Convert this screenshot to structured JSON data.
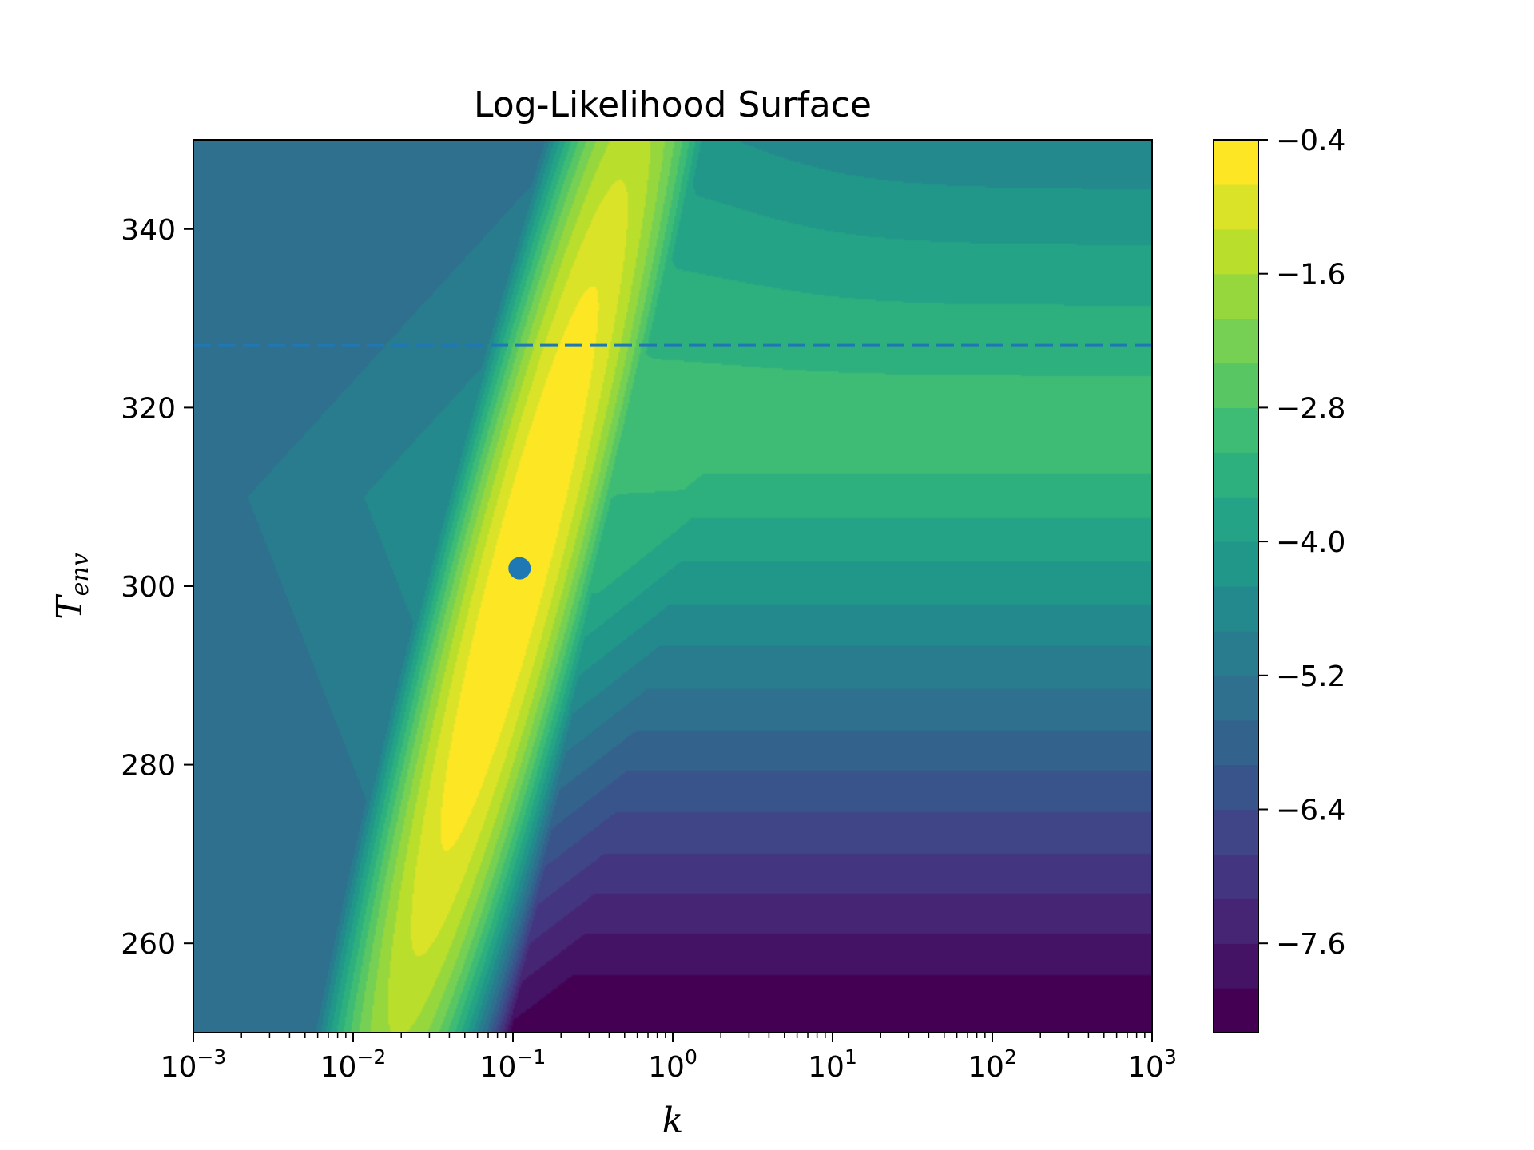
{
  "chart_data": {
    "type": "heatmap",
    "subtype": "filled-contour",
    "title": "Log-Likelihood Surface",
    "xlabel": "k",
    "ylabel_main": "T",
    "ylabel_sub": "env",
    "x_scale": "log",
    "xlim": [
      0.001,
      1000
    ],
    "ylim": [
      250,
      350
    ],
    "x_ticks": [
      {
        "base": "10",
        "exp": "−3"
      },
      {
        "base": "10",
        "exp": "−2"
      },
      {
        "base": "10",
        "exp": "−1"
      },
      {
        "base": "10",
        "exp": "0"
      },
      {
        "base": "10",
        "exp": "1"
      },
      {
        "base": "10",
        "exp": "2"
      },
      {
        "base": "10",
        "exp": "3"
      }
    ],
    "x_tick_values": [
      0.001,
      0.01,
      0.1,
      1,
      10,
      100,
      1000
    ],
    "y_ticks": [
      "260",
      "280",
      "300",
      "320",
      "340"
    ],
    "y_tick_values": [
      260,
      280,
      300,
      320,
      340
    ],
    "colorbar": {
      "min": -8.4,
      "max": -0.4,
      "step": 0.4,
      "colormap": "viridis",
      "ticks": [
        "−0.4",
        "−1.6",
        "−2.8",
        "−4.0",
        "−5.2",
        "−6.4",
        "−7.6"
      ],
      "tick_values": [
        -0.4,
        -1.6,
        -2.8,
        -4.0,
        -5.2,
        -6.4,
        -7.6
      ]
    },
    "mle_point": {
      "k": 0.11,
      "T_env": 302,
      "color": "#1f77b4"
    },
    "reference_line": {
      "T_env": 327,
      "style": "dashed",
      "color": "#1f77b4"
    }
  }
}
